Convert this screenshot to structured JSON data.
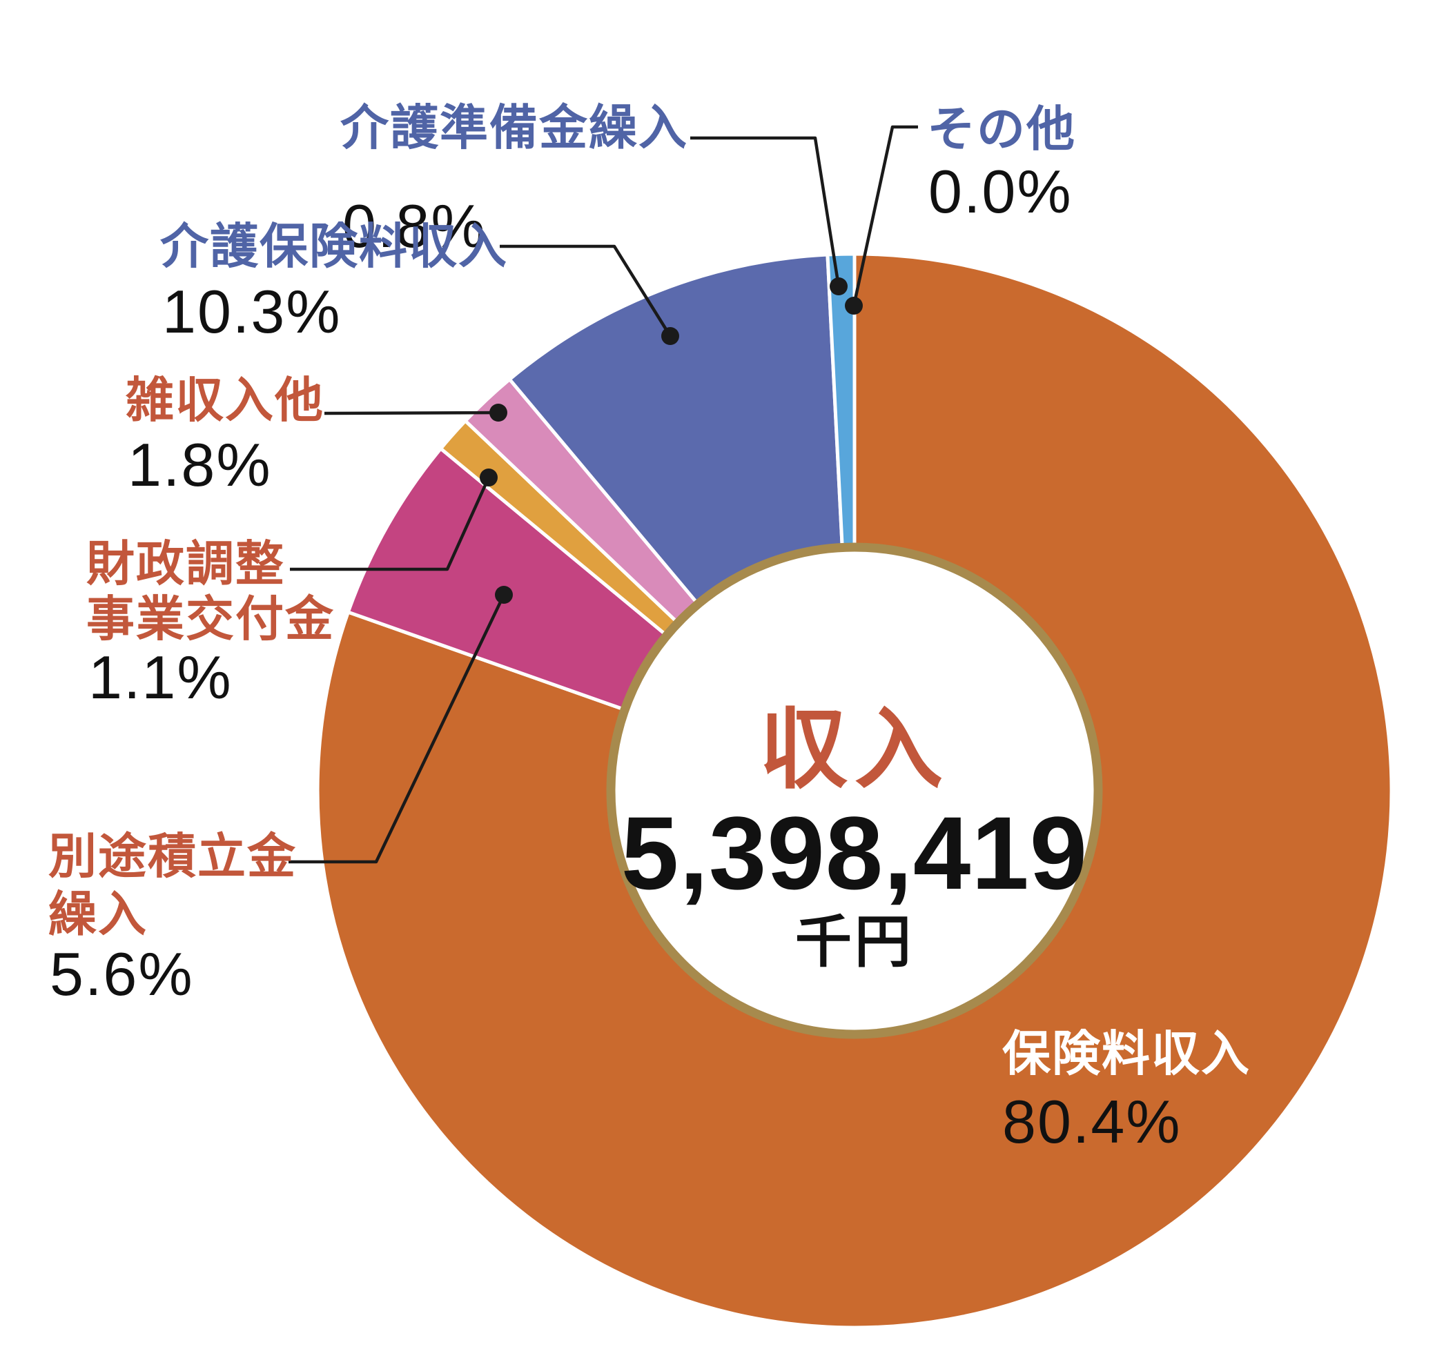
{
  "chart_data": {
    "type": "pie",
    "variant": "donut",
    "title": "収入",
    "direction": "clockwise",
    "start_angle": "top",
    "legend_position": "callout-labels",
    "background_color": "#FFFFFF",
    "ring_color": "#A78A4D",
    "leader_line_color": "#1A1A1A",
    "pct_text_color": "#111111",
    "center": {
      "title": "収入",
      "title_color": "#C2573B",
      "value": "5,398,419",
      "unit": "千円"
    },
    "slices": [
      {
        "id": "hokenryo-shunyu",
        "label": "保険料収入",
        "label_lines": [
          "保険料収入"
        ],
        "pct": 80.4,
        "pct_label": "80.4%",
        "color": "#CA6A2E",
        "label_color": "#FFFFFF"
      },
      {
        "id": "betto-tsumitate",
        "label": "別途積立金繰入",
        "label_lines": [
          "別途積立金",
          "繰入"
        ],
        "pct": 5.6,
        "pct_label": "5.6%",
        "color": "#C44481",
        "label_color": "#C2573B"
      },
      {
        "id": "zaisei-chosei",
        "label": "財政調整事業交付金",
        "label_lines": [
          "財政調整",
          "事業交付金"
        ],
        "pct": 1.1,
        "pct_label": "1.1%",
        "color": "#E0A03F",
        "label_color": "#C2573B"
      },
      {
        "id": "zatsu-shunyu",
        "label": "雑収入他",
        "label_lines": [
          "雑収入他"
        ],
        "pct": 1.8,
        "pct_label": "1.8%",
        "color": "#D98BBA",
        "label_color": "#C2573B"
      },
      {
        "id": "kaigo-hokenryo",
        "label": "介護保険料収入",
        "label_lines": [
          "介護保険料収入"
        ],
        "pct": 10.3,
        "pct_label": "10.3%",
        "color": "#5B6AAD",
        "label_color": "#5064A6"
      },
      {
        "id": "kaigo-junbikin",
        "label": "介護準備金繰入",
        "label_lines": [
          "介護準備金繰入"
        ],
        "pct": 0.8,
        "pct_label": "0.8%",
        "color": "#58A6DB",
        "label_color": "#5064A6"
      },
      {
        "id": "sonota",
        "label": "その他",
        "label_lines": [
          "その他"
        ],
        "pct": 0.0,
        "pct_label": "0.0%",
        "color": "#58A6DB",
        "label_color": "#5064A6"
      }
    ]
  }
}
